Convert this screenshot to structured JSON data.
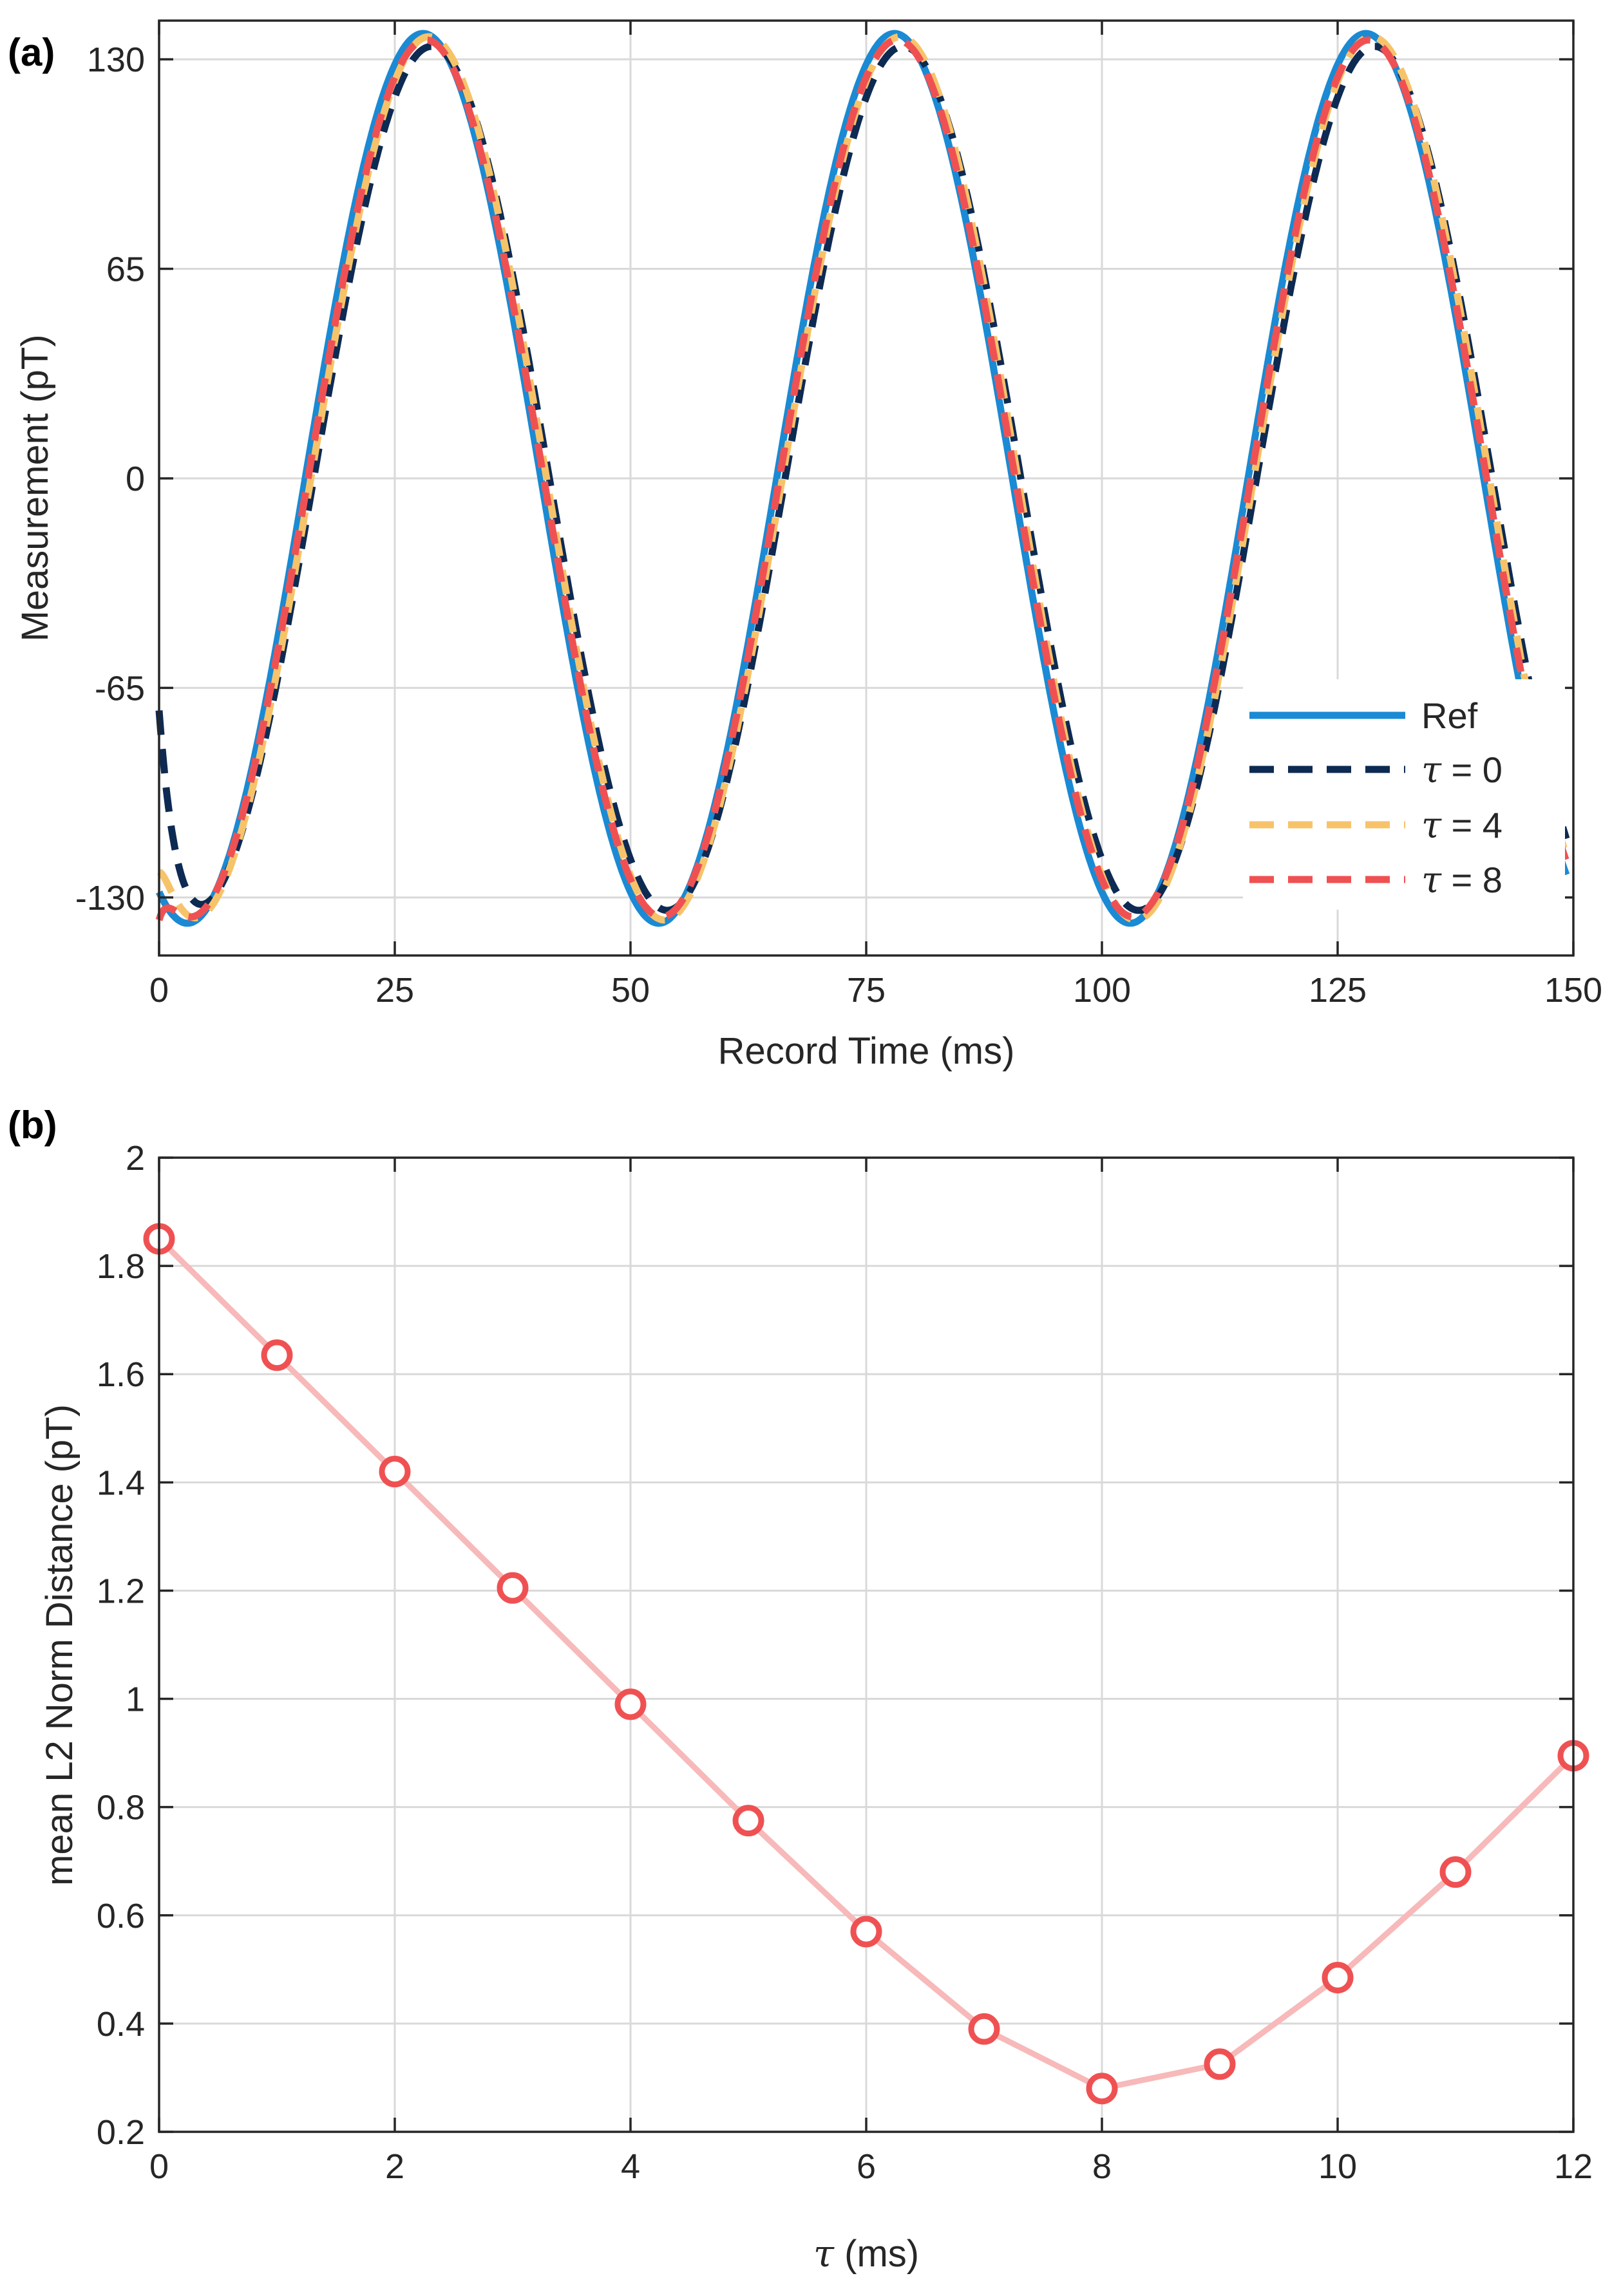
{
  "colors": {
    "ref": "#1a8ad4",
    "tau0": "#0d2a52",
    "tau4": "#f7c36a",
    "tau8": "#ef5153",
    "panel_b_line": "#f7b9b9",
    "panel_b_marker": "#ef5153",
    "grid": "#d9d9d9",
    "axis": "#262626"
  },
  "chart_data": [
    {
      "panel_label": "(a)",
      "type": "line",
      "xlabel": "Record Time (ms)",
      "ylabel": "Measurement (pT)",
      "xlim": [
        0,
        150
      ],
      "ylim": [
        -148,
        142
      ],
      "xticks": [
        0,
        25,
        50,
        75,
        100,
        125,
        150
      ],
      "xtick_labels": [
        "0",
        "25",
        "50",
        "75",
        "100",
        "125",
        "150"
      ],
      "yticks": [
        -130,
        -65,
        0,
        65,
        130
      ],
      "ytick_labels": [
        "-130",
        "-65",
        "0",
        "65",
        "130"
      ],
      "grid": true,
      "legend_position": "bottom-right",
      "signal": {
        "waveform": "sinusoid",
        "period_ms": 50,
        "amplitude_pT": 138,
        "ref_peak_times_ms": [
          28,
          78,
          128
        ],
        "ref_trough_times_ms": [
          3,
          53,
          103
        ]
      },
      "series": [
        {
          "name": "Ref",
          "style": "solid",
          "lag_ms": 0,
          "amplitude_pT": 138,
          "color_key": "ref"
        },
        {
          "name": "τ = 0",
          "label_symbol": "τ",
          "label_value": " = 0",
          "style": "dashed",
          "lag_ms": 0.9,
          "amplitude_pT": 134,
          "color_key": "tau0",
          "start_value_pT": -72
        },
        {
          "name": "τ = 4",
          "label_symbol": "τ",
          "label_value": " = 4",
          "style": "dashed",
          "lag_ms": 0.6,
          "amplitude_pT": 137,
          "color_key": "tau4",
          "start_value_pT": -122
        },
        {
          "name": "τ = 8",
          "label_symbol": "τ",
          "label_value": " = 8",
          "style": "dashed",
          "lag_ms": 0.3,
          "amplitude_pT": 136,
          "color_key": "tau8",
          "start_value_pT": -137
        }
      ]
    },
    {
      "panel_label": "(b)",
      "type": "line",
      "xlabel_symbol": "τ",
      "xlabel_rest": " (ms)",
      "ylabel": "mean L2 Norm Distance (pT)",
      "xlim": [
        0,
        12
      ],
      "ylim": [
        0.2,
        2
      ],
      "xticks": [
        0,
        2,
        4,
        6,
        8,
        10,
        12
      ],
      "xtick_labels": [
        "0",
        "2",
        "4",
        "6",
        "8",
        "10",
        "12"
      ],
      "yticks": [
        0.2,
        0.4,
        0.6,
        0.8,
        1,
        1.2,
        1.4,
        1.6,
        1.8,
        2
      ],
      "ytick_labels": [
        "0.2",
        "0.4",
        "0.6",
        "0.8",
        "1",
        "1.2",
        "1.4",
        "1.6",
        "1.8",
        "2"
      ],
      "grid": true,
      "marker": "circle",
      "x": [
        0,
        1,
        2,
        3,
        4,
        5,
        6,
        7,
        8,
        9,
        10,
        11,
        12
      ],
      "y": [
        1.85,
        1.635,
        1.42,
        1.205,
        0.99,
        0.775,
        0.57,
        0.39,
        0.28,
        0.325,
        0.485,
        0.68,
        0.895
      ]
    }
  ]
}
